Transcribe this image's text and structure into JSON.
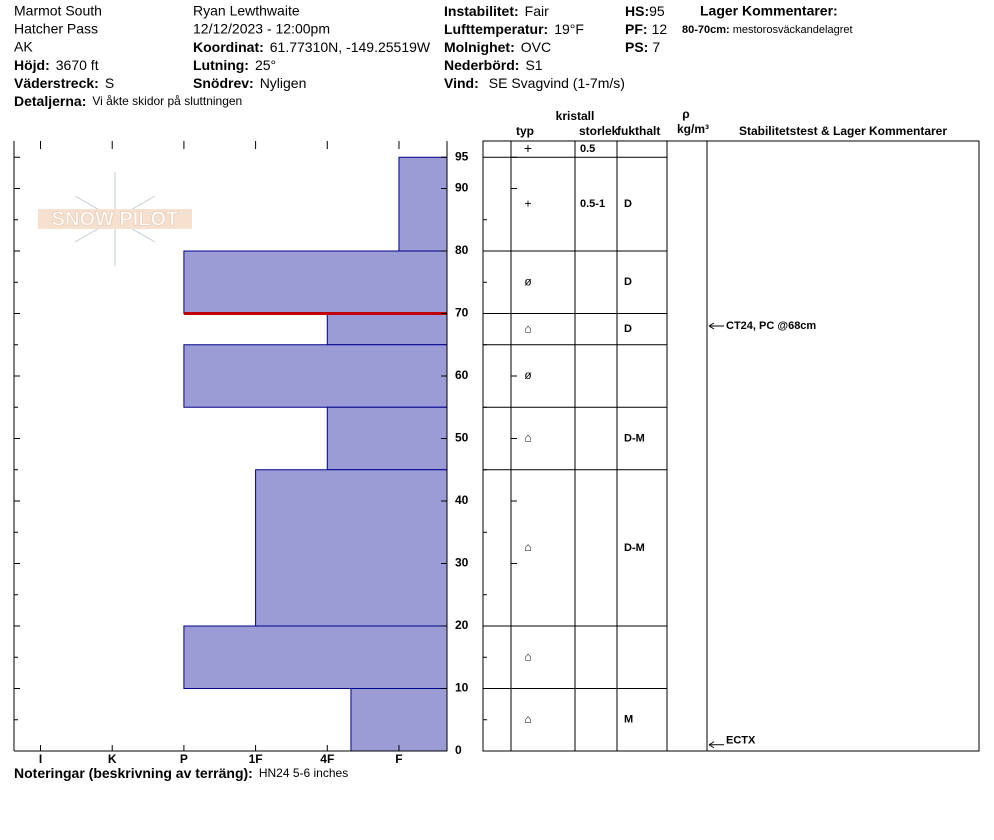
{
  "header": {
    "site": "Marmot South",
    "area": "Hatcher Pass",
    "state": "AK",
    "elevation": {
      "label": "Höjd:",
      "value": "3670 ft"
    },
    "aspect": {
      "label": "Väderstreck:",
      "value": "S"
    },
    "details": {
      "label": "Detaljerna:",
      "value": "Vi åkte skidor på sluttningen"
    },
    "observer": "Ryan Lewthwaite",
    "datetime": "12/12/2023 - 12:00pm",
    "coords": {
      "label": "Koordinat:",
      "value": "61.77310N, -149.25519W"
    },
    "slope": {
      "label": "Lutning:",
      "value": "25°"
    },
    "wind_loading": {
      "label": "Snödrev:",
      "value": "Nyligen"
    },
    "stability": {
      "label": "Instabilitet:",
      "value": "Fair"
    },
    "air_temp": {
      "label": "Lufttemperatur:",
      "value": "19°F"
    },
    "sky": {
      "label": "Molnighet:",
      "value": "OVC"
    },
    "precip": {
      "label": "Nederbörd:",
      "value": "S1"
    },
    "wind": {
      "label": "Vind:",
      "value": "SE Svagvind (1-7m/s)"
    },
    "hs": {
      "label": "HS:",
      "value": 95
    },
    "pf": {
      "label": "PF:",
      "value": 12
    },
    "ps": {
      "label": "PS:",
      "value": 7
    },
    "layer_comments": {
      "title": "Lager Kommentarer:",
      "label": "80-70cm:",
      "value": "mestorosväckandelagret"
    }
  },
  "logo": "SNOW PILOT",
  "chart_data": {
    "type": "snowpit",
    "ylim": [
      0,
      97.6
    ],
    "yticks": [
      0,
      10,
      20,
      30,
      40,
      50,
      60,
      70,
      80,
      90,
      95
    ],
    "minor_yticks": [
      5,
      15,
      25,
      35,
      45,
      55,
      65,
      75,
      85
    ],
    "xlim": [
      6.37,
      0.33
    ],
    "xticks": [
      {
        "value": 6,
        "label": "I"
      },
      {
        "value": 5,
        "label": "K"
      },
      {
        "value": 4,
        "label": "P"
      },
      {
        "value": 3,
        "label": "1F"
      },
      {
        "value": 2,
        "label": "4F"
      },
      {
        "value": 1,
        "label": "F"
      }
    ],
    "color": "#9b9bd6",
    "edge_color": "#00008b",
    "critical_depth": 70,
    "critical_color": "#c00000",
    "table_headers": {
      "grain": "typ",
      "size_top": "kristall",
      "size": "storlek",
      "moisture": "fukthalt",
      "density_top": "ρ",
      "density": "kg/m³",
      "comments": "Stabilitetstest & Lager Kommentarer"
    },
    "surface": {
      "grain": "+",
      "size": "0.5"
    },
    "layers": [
      {
        "top": 95,
        "bottom": 80,
        "hardness": 1,
        "grain": "+",
        "size": "0.5-1",
        "moisture": "D"
      },
      {
        "top": 80,
        "bottom": 70,
        "hardness": 4,
        "grain": "ø",
        "moisture": "D"
      },
      {
        "top": 70,
        "bottom": 65,
        "hardness": 2,
        "grain": "⌂",
        "moisture": "D"
      },
      {
        "top": 65,
        "bottom": 55,
        "hardness": 4,
        "grain": "ø"
      },
      {
        "top": 55,
        "bottom": 45,
        "hardness": 2,
        "grain": "⌂",
        "moisture": "D-M"
      },
      {
        "top": 45,
        "bottom": 20,
        "hardness": 3,
        "grain": "⌂",
        "moisture": "D-M"
      },
      {
        "top": 20,
        "bottom": 10,
        "hardness": 4,
        "grain": "⌂"
      },
      {
        "top": 10,
        "bottom": 0,
        "hardness": 1.67,
        "grain": "⌂",
        "moisture": "M"
      }
    ],
    "tests": [
      {
        "depth": 68,
        "label": "CT24, PC @68cm"
      },
      {
        "depth": 1,
        "label": "ECTX"
      }
    ]
  },
  "footer": {
    "label": "Noteringar (beskrivning av terräng):",
    "value": "HN24 5-6 inches"
  }
}
